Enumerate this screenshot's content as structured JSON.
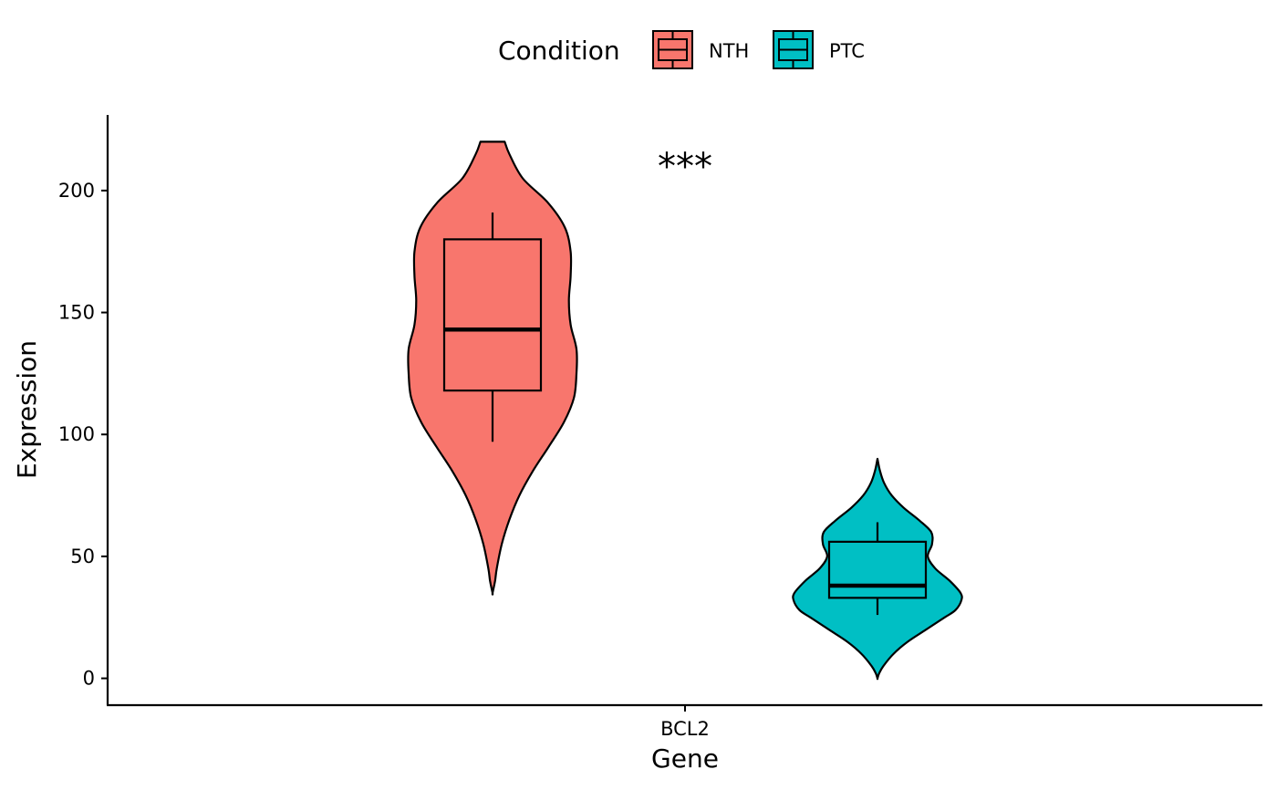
{
  "chart_data": {
    "type": "violin",
    "title": "",
    "xlabel": "Gene",
    "ylabel": "Expression",
    "categories": [
      "BCL2"
    ],
    "ylim": [
      -11,
      231
    ],
    "yticks": [
      0,
      50,
      100,
      150,
      200
    ],
    "grid": false,
    "legend": {
      "title": "Condition",
      "position": "top",
      "entries": [
        "NTH",
        "PTC"
      ]
    },
    "annotation": "***",
    "series": [
      {
        "name": "NTH",
        "color": "#F8766D",
        "box": {
          "whisker_low": 97,
          "q1": 118,
          "median": 143,
          "q3": 180,
          "whisker_high": 191
        },
        "violin": [
          [
            220,
            0.145
          ],
          [
            215,
            0.2
          ],
          [
            205,
            0.36
          ],
          [
            195,
            0.66
          ],
          [
            185,
            0.86
          ],
          [
            175,
            0.93
          ],
          [
            165,
            0.93
          ],
          [
            155,
            0.91
          ],
          [
            145,
            0.93
          ],
          [
            135,
            1.0
          ],
          [
            125,
            1.0
          ],
          [
            115,
            0.97
          ],
          [
            105,
            0.85
          ],
          [
            95,
            0.67
          ],
          [
            85,
            0.48
          ],
          [
            75,
            0.32
          ],
          [
            65,
            0.2
          ],
          [
            55,
            0.11
          ],
          [
            45,
            0.05
          ],
          [
            40,
            0.03
          ],
          [
            35,
            0.0
          ]
        ]
      },
      {
        "name": "PTC",
        "color": "#00BFC4",
        "box": {
          "whisker_low": 26,
          "q1": 33,
          "median": 38,
          "q3": 56,
          "whisker_high": 64
        },
        "violin": [
          [
            90,
            0.0
          ],
          [
            85,
            0.03
          ],
          [
            80,
            0.08
          ],
          [
            75,
            0.17
          ],
          [
            70,
            0.31
          ],
          [
            65,
            0.49
          ],
          [
            60,
            0.64
          ],
          [
            55,
            0.65
          ],
          [
            50,
            0.6
          ],
          [
            45,
            0.69
          ],
          [
            40,
            0.86
          ],
          [
            35,
            0.99
          ],
          [
            32,
            1.0
          ],
          [
            28,
            0.93
          ],
          [
            25,
            0.8
          ],
          [
            20,
            0.58
          ],
          [
            15,
            0.36
          ],
          [
            10,
            0.19
          ],
          [
            5,
            0.07
          ],
          [
            2,
            0.02
          ],
          [
            0,
            0.0
          ]
        ]
      }
    ]
  }
}
